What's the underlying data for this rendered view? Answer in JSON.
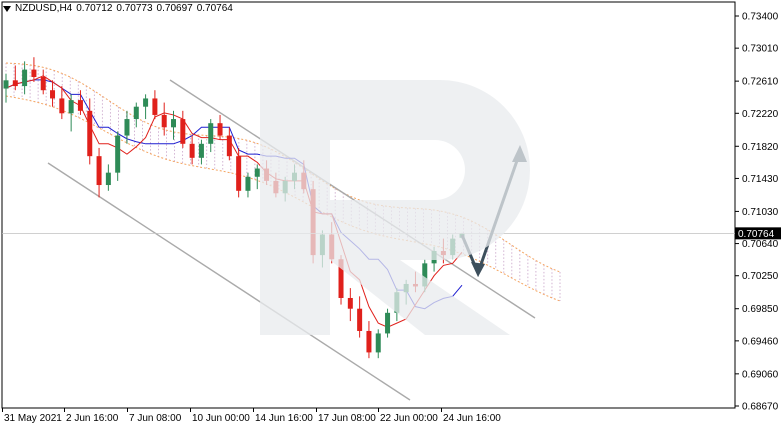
{
  "header": {
    "symbol": "NZDUSD,H4",
    "open": "0.70712",
    "high": "0.70773",
    "low": "0.70697",
    "close": "0.70764"
  },
  "price_axis": {
    "labels": [
      "0.73400",
      "0.73010",
      "0.72610",
      "0.72220",
      "0.71820",
      "0.71430",
      "0.71030",
      "0.70640",
      "0.70250",
      "0.69850",
      "0.69460",
      "0.69060",
      "0.68670"
    ],
    "current_price": "0.70764"
  },
  "time_axis": {
    "labels": [
      "31 May 2021",
      "2 Jun 16:00",
      "7 Jun 08:00",
      "10 Jun 00:00",
      "14 Jun 16:00",
      "17 Jun 08:00",
      "22 Jun 00:00",
      "24 Jun 16:00"
    ]
  },
  "colors": {
    "bull": "#2e8b57",
    "bear": "#e0201b",
    "tenkan": "#e0201b",
    "kijun": "#1f1fd0",
    "cloud_a": "#f4a460",
    "cloud_b": "#c8a2c8",
    "channel": "#aaaaaa",
    "arrow": "#3d4f5c"
  },
  "chart_data": {
    "type": "candlestick",
    "title": "NZDUSD,H4",
    "ylim": [
      0.6867,
      0.734
    ],
    "candles": [
      [
        0.7252,
        0.727,
        0.7235,
        0.7262
      ],
      [
        0.7262,
        0.728,
        0.725,
        0.7255
      ],
      [
        0.7255,
        0.7285,
        0.7245,
        0.7275
      ],
      [
        0.7275,
        0.729,
        0.726,
        0.7266
      ],
      [
        0.7266,
        0.7275,
        0.7245,
        0.725
      ],
      [
        0.725,
        0.7262,
        0.723,
        0.724
      ],
      [
        0.724,
        0.7255,
        0.7215,
        0.7222
      ],
      [
        0.7222,
        0.7245,
        0.72,
        0.7238
      ],
      [
        0.7238,
        0.725,
        0.722,
        0.7225
      ],
      [
        0.7225,
        0.724,
        0.716,
        0.717
      ],
      [
        0.717,
        0.718,
        0.712,
        0.7135
      ],
      [
        0.7135,
        0.716,
        0.7128,
        0.715
      ],
      [
        0.715,
        0.72,
        0.714,
        0.7195
      ],
      [
        0.7195,
        0.7225,
        0.7185,
        0.7215
      ],
      [
        0.7215,
        0.7235,
        0.7205,
        0.723
      ],
      [
        0.723,
        0.7245,
        0.7215,
        0.724
      ],
      [
        0.724,
        0.725,
        0.7215,
        0.722
      ],
      [
        0.722,
        0.7235,
        0.7195,
        0.7205
      ],
      [
        0.7205,
        0.7225,
        0.719,
        0.7215
      ],
      [
        0.7215,
        0.7225,
        0.718,
        0.7185
      ],
      [
        0.7185,
        0.7195,
        0.716,
        0.7168
      ],
      [
        0.7168,
        0.719,
        0.716,
        0.7185
      ],
      [
        0.7185,
        0.7215,
        0.7175,
        0.721
      ],
      [
        0.721,
        0.722,
        0.719,
        0.7195
      ],
      [
        0.7195,
        0.7205,
        0.7165,
        0.717
      ],
      [
        0.717,
        0.718,
        0.712,
        0.7128
      ],
      [
        0.7128,
        0.715,
        0.712,
        0.7145
      ],
      [
        0.7145,
        0.716,
        0.713,
        0.7155
      ],
      [
        0.7155,
        0.7165,
        0.7135,
        0.714
      ],
      [
        0.714,
        0.715,
        0.712,
        0.7125
      ],
      [
        0.7125,
        0.7145,
        0.7115,
        0.714
      ],
      [
        0.714,
        0.716,
        0.713,
        0.715
      ],
      [
        0.715,
        0.7165,
        0.7125,
        0.713
      ],
      [
        0.713,
        0.714,
        0.704,
        0.705
      ],
      [
        0.705,
        0.708,
        0.7035,
        0.7075
      ],
      [
        0.7075,
        0.709,
        0.704,
        0.7045
      ],
      [
        0.7045,
        0.705,
        0.699,
        0.6998
      ],
      [
        0.6998,
        0.701,
        0.697,
        0.6985
      ],
      [
        0.6985,
        0.7,
        0.695,
        0.6958
      ],
      [
        0.6958,
        0.697,
        0.6925,
        0.6932
      ],
      [
        0.6932,
        0.696,
        0.6925,
        0.6955
      ],
      [
        0.6955,
        0.6985,
        0.695,
        0.698
      ],
      [
        0.698,
        0.701,
        0.697,
        0.7005
      ],
      [
        0.7005,
        0.702,
        0.699,
        0.7015
      ],
      [
        0.7015,
        0.703,
        0.7005,
        0.7012
      ],
      [
        0.7012,
        0.7045,
        0.7005,
        0.704
      ],
      [
        0.704,
        0.706,
        0.703,
        0.7055
      ],
      [
        0.7055,
        0.707,
        0.704,
        0.705
      ],
      [
        0.705,
        0.7075,
        0.7045,
        0.707
      ],
      [
        0.7071,
        0.7077,
        0.707,
        0.7076
      ]
    ],
    "annotations": [
      "descending channel",
      "forecast arrow down then up"
    ]
  }
}
